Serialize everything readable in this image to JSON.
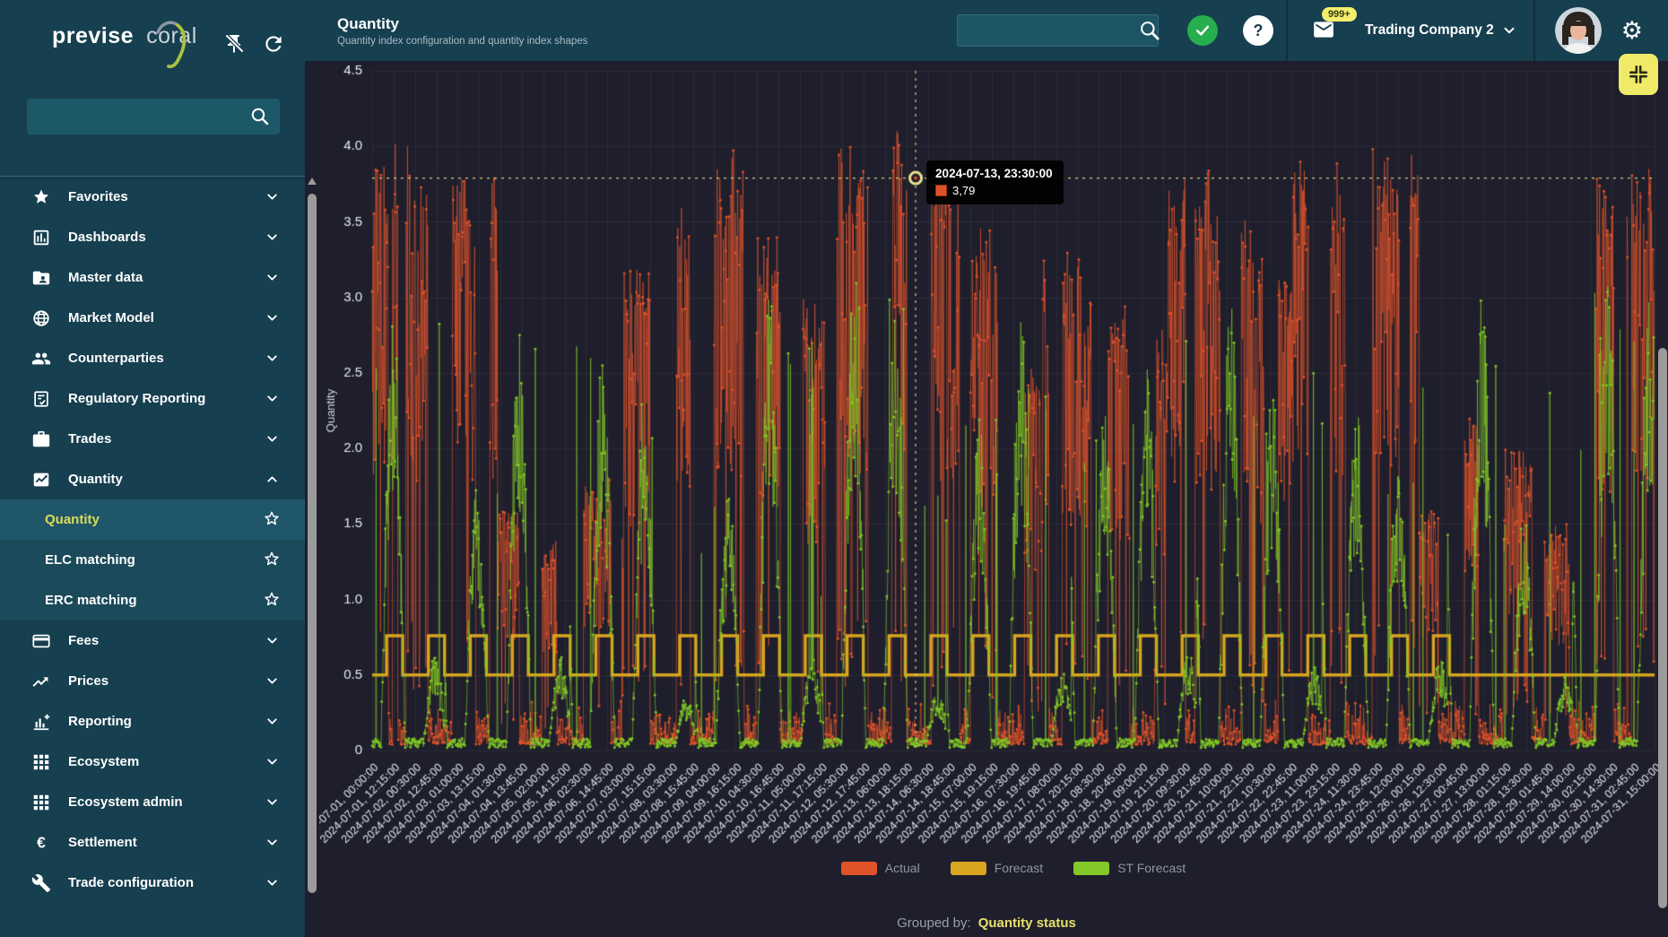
{
  "app": {
    "brand_left": "previse",
    "brand_right": "coral"
  },
  "colors": {
    "sidebar_bg": "#163f4f",
    "content_bg": "#1e1e2c",
    "accent_yellow": "#f0ea69",
    "actual": "#e0532a",
    "forecast": "#d9a51f",
    "st_forecast": "#82c826",
    "crosshair": "#d8d084",
    "check_green": "#27ae4e"
  },
  "sidebar": {
    "search_placeholder": "",
    "search_value": "",
    "items": [
      {
        "label": "Favorites",
        "icon": "star",
        "expanded": false
      },
      {
        "label": "Dashboards",
        "icon": "dashboard",
        "expanded": false
      },
      {
        "label": "Master data",
        "icon": "folder-user",
        "expanded": false
      },
      {
        "label": "Market Model",
        "icon": "globe",
        "expanded": false
      },
      {
        "label": "Counterparties",
        "icon": "people",
        "expanded": false
      },
      {
        "label": "Regulatory Reporting",
        "icon": "doc-check",
        "expanded": false
      },
      {
        "label": "Trades",
        "icon": "briefcase",
        "expanded": false
      },
      {
        "label": "Quantity",
        "icon": "chart",
        "expanded": true,
        "children": [
          {
            "label": "Quantity",
            "active": true
          },
          {
            "label": "ELC matching",
            "active": false
          },
          {
            "label": "ERC matching",
            "active": false
          }
        ]
      },
      {
        "label": "Fees",
        "icon": "card",
        "expanded": false
      },
      {
        "label": "Prices",
        "icon": "trend",
        "expanded": false
      },
      {
        "label": "Reporting",
        "icon": "chart-add",
        "expanded": false
      },
      {
        "label": "Ecosystem",
        "icon": "grid",
        "expanded": false
      },
      {
        "label": "Ecosystem admin",
        "icon": "grid",
        "expanded": false
      },
      {
        "label": "Settlement",
        "icon": "euro",
        "expanded": false
      },
      {
        "label": "Trade configuration",
        "icon": "wrench",
        "expanded": false
      }
    ]
  },
  "header": {
    "title": "Quantity",
    "subtitle": "Quantity index configuration and quantity index shapes",
    "search_value": "",
    "search_placeholder": "",
    "mail_badge": "999+",
    "company": "Trading Company 2",
    "help_glyph": "?",
    "gear_glyph": "⚙"
  },
  "chart_data": {
    "type": "line",
    "title": "",
    "xlabel": "",
    "ylabel": "Quantity",
    "ylim": [
      0,
      4.5
    ],
    "y_ticks": [
      "0",
      "0.5",
      "1.0",
      "1.5",
      "2.0",
      "2.5",
      "3.0",
      "3.5",
      "4.0",
      "4.5"
    ],
    "x_total_days": 30.625,
    "grid": true,
    "legend_position": "bottom",
    "render_seed": 42,
    "x_ticks": [
      "2024-07-01, 00:00:00",
      "2024-07-01, 12:15:00",
      "2024-07-02, 00:30:00",
      "2024-07-02, 12:45:00",
      "2024-07-03, 01:00:00",
      "2024-07-03, 13:15:00",
      "2024-07-04, 01:30:00",
      "2024-07-04, 13:45:00",
      "2024-07-05, 02:00:00",
      "2024-07-05, 14:15:00",
      "2024-07-06, 02:30:00",
      "2024-07-06, 14:45:00",
      "2024-07-07, 03:00:00",
      "2024-07-07, 15:15:00",
      "2024-07-08, 03:30:00",
      "2024-07-08, 15:45:00",
      "2024-07-09, 04:00:00",
      "2024-07-09, 16:15:00",
      "2024-07-10, 04:30:00",
      "2024-07-10, 16:45:00",
      "2024-07-11, 05:00:00",
      "2024-07-11, 17:15:00",
      "2024-07-12, 05:30:00",
      "2024-07-12, 17:45:00",
      "2024-07-13, 06:00:00",
      "2024-07-13, 18:15:00",
      "2024-07-14, 06:30:00",
      "2024-07-14, 18:45:00",
      "2024-07-15, 07:00:00",
      "2024-07-15, 19:15:00",
      "2024-07-16, 07:30:00",
      "2024-07-16, 19:45:00",
      "2024-07-17, 08:00:00",
      "2024-07-17, 20:15:00",
      "2024-07-18, 08:30:00",
      "2024-07-18, 20:45:00",
      "2024-07-19, 09:00:00",
      "2024-07-19, 21:15:00",
      "2024-07-20, 09:30:00",
      "2024-07-20, 21:45:00",
      "2024-07-21, 10:00:00",
      "2024-07-21, 22:15:00",
      "2024-07-22, 10:30:00",
      "2024-07-22, 22:45:00",
      "2024-07-23, 11:00:00",
      "2024-07-23, 23:15:00",
      "2024-07-24, 11:30:00",
      "2024-07-24, 23:45:00",
      "2024-07-25, 12:00:00",
      "2024-07-26, 00:15:00",
      "2024-07-26, 12:30:00",
      "2024-07-27, 00:45:00",
      "2024-07-27, 13:00:00",
      "2024-07-28, 01:15:00",
      "2024-07-28, 13:30:00",
      "2024-07-29, 01:45:00",
      "2024-07-29, 14:00:00",
      "2024-07-30, 02:15:00",
      "2024-07-30, 14:30:00",
      "2024-07-31, 02:45:00",
      "2024-07-31, 15:00:00"
    ],
    "series": [
      {
        "name": "Actual",
        "color": "#e0532a",
        "style": "line-markers",
        "daily_peaks": [
          4.05,
          3.9,
          3.8,
          1.6,
          1.4,
          1.8,
          3.2,
          3.6,
          4.0,
          3.4,
          3.0,
          4.05,
          4.1,
          3.9,
          3.5,
          2.6,
          3.3,
          3.0,
          2.8,
          3.9,
          3.6,
          3.3,
          3.9,
          4.0,
          3.95,
          1.6,
          2.2,
          2.0,
          1.5,
          3.8,
          3.9
        ]
      },
      {
        "name": "Forecast",
        "color": "#d9a51f",
        "style": "step",
        "low_level": 0.5,
        "high_level": 0.76,
        "high_window_hours": [
          8.25,
          17.5
        ],
        "high_days": [
          1,
          2,
          3,
          4,
          5,
          6,
          7,
          8,
          9,
          10,
          11,
          12,
          13,
          14,
          15,
          16,
          17,
          18,
          19,
          20,
          21,
          22,
          23,
          24,
          25,
          26
        ]
      },
      {
        "name": "ST Forecast",
        "color": "#82c826",
        "style": "line-markers",
        "daily_peaks": [
          2.9,
          2.85,
          1.8,
          2.8,
          2.85,
          2.6,
          2.4,
          1.6,
          1.8,
          3.1,
          2.9,
          3.15,
          3.0,
          1.8,
          2.2,
          2.9,
          2.6,
          2.3,
          2.6,
          3.1,
          3.0,
          2.4,
          2.6,
          2.3,
          2.0,
          2.8,
          3.05,
          1.6,
          2.4,
          3.1,
          3.0
        ]
      }
    ],
    "highlighted_point": {
      "series": "Actual",
      "date_label": "2024-07-13, 23:30:00",
      "value_label": "3,79",
      "value": 3.79,
      "day_offset": 12.97917
    }
  },
  "footer": {
    "grouped_by_label": "Grouped by:",
    "grouped_by_value": "Quantity status"
  }
}
